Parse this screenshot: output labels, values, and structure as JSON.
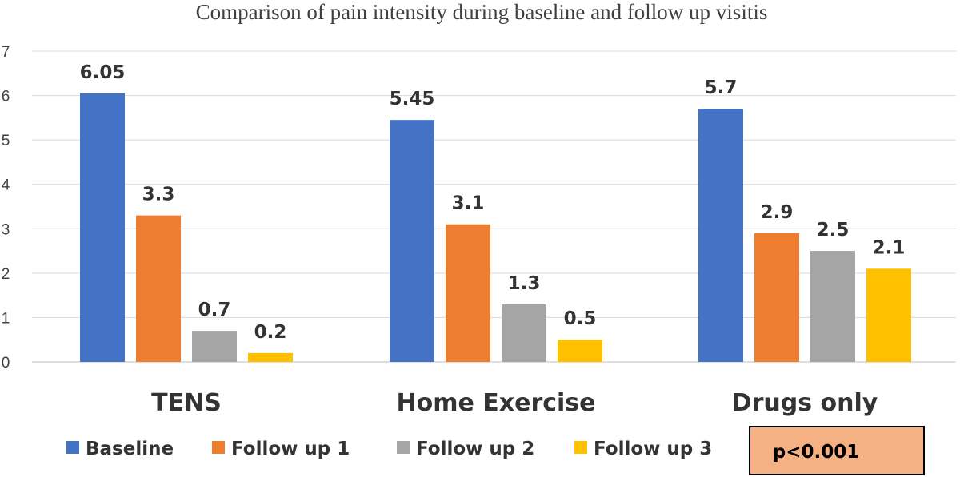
{
  "chart_data": {
    "type": "bar",
    "title": "Comparison of pain intensity during baseline and follow up visitis",
    "categories": [
      "TENS",
      "Home Exercise",
      "Drugs only"
    ],
    "series": [
      {
        "name": "Baseline",
        "color": "#4472C4",
        "values": [
          6.05,
          5.45,
          5.7
        ]
      },
      {
        "name": "Follow up 1",
        "color": "#ED7D31",
        "values": [
          3.3,
          3.1,
          2.9
        ]
      },
      {
        "name": "Follow up 2",
        "color": "#A5A5A5",
        "values": [
          0.7,
          1.3,
          2.5
        ]
      },
      {
        "name": "Follow up 3",
        "color": "#FFC000",
        "values": [
          0.2,
          0.5,
          2.1
        ]
      }
    ],
    "ylim": [
      0,
      7
    ],
    "yticks": [
      0,
      1,
      2,
      3,
      4,
      5,
      6,
      7
    ],
    "grid": true,
    "legend_position": "bottom",
    "annotation": {
      "text": "p<0.001",
      "fill": "#F4B183",
      "border": "#000000"
    }
  }
}
